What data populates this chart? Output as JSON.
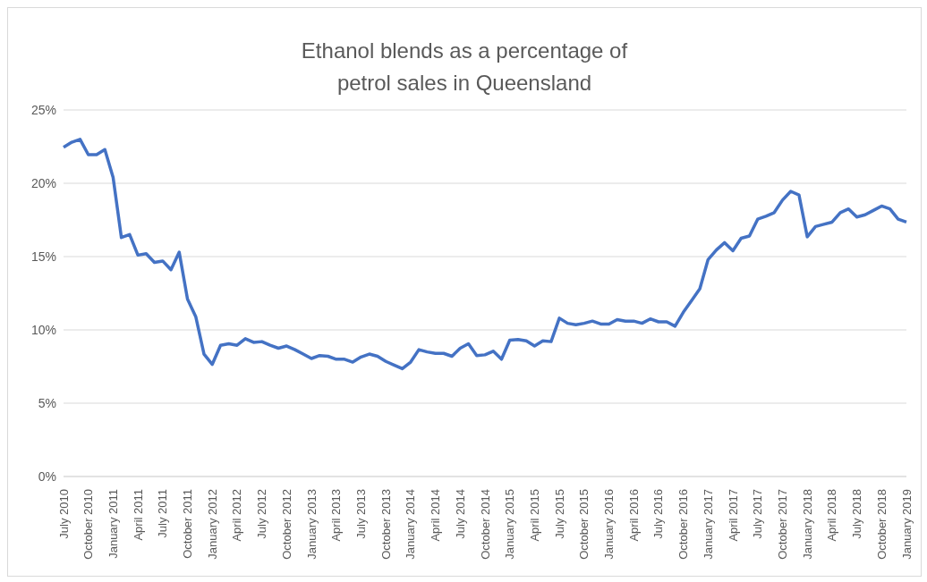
{
  "chart_data": {
    "type": "line",
    "title": "Ethanol blends as a percentage of petrol sales in Queensland",
    "categories": [
      "July 2010",
      null,
      null,
      "October 2010",
      null,
      null,
      "January 2011",
      null,
      null,
      "April 2011",
      null,
      null,
      "July 2011",
      null,
      null,
      "October 2011",
      null,
      null,
      "January 2012",
      null,
      null,
      "April 2012",
      null,
      null,
      "July 2012",
      null,
      null,
      "October 2012",
      null,
      null,
      "January 2013",
      null,
      null,
      "April 2013",
      null,
      null,
      "July 2013",
      null,
      null,
      "October 2013",
      null,
      null,
      "January 2014",
      null,
      null,
      "April 2014",
      null,
      null,
      "July 2014",
      null,
      null,
      "October 2014",
      null,
      null,
      "January 2015",
      null,
      null,
      "April 2015",
      null,
      null,
      "July 2015",
      null,
      null,
      "October 2015",
      null,
      null,
      "January 2016",
      null,
      null,
      "April 2016",
      null,
      null,
      "July 2016",
      null,
      null,
      "October 2016",
      null,
      null,
      "January 2017",
      null,
      null,
      "April 2017",
      null,
      null,
      "July 2017",
      null,
      null,
      "October 2017",
      null,
      null,
      "January 2018",
      null,
      null,
      "April 2018",
      null,
      null,
      "July 2018",
      null,
      null,
      "October 2018",
      null,
      null,
      "January 2019"
    ],
    "series": [
      {
        "color": "#4472c4",
        "values": [
          22.45,
          22.8,
          23.0,
          21.95,
          21.95,
          22.3,
          20.4,
          16.3,
          16.5,
          15.1,
          15.2,
          14.6,
          14.7,
          14.1,
          15.3,
          12.1,
          10.9,
          8.35,
          7.65,
          8.95,
          9.05,
          8.95,
          9.4,
          9.15,
          9.2,
          8.95,
          8.75,
          8.9,
          8.65,
          8.35,
          8.05,
          8.25,
          8.2,
          8.0,
          8.0,
          7.8,
          8.15,
          8.35,
          8.2,
          7.85,
          7.6,
          7.35,
          7.8,
          8.65,
          8.5,
          8.4,
          8.4,
          8.2,
          8.75,
          9.05,
          8.25,
          8.3,
          8.55,
          8.0,
          9.3,
          9.35,
          9.25,
          8.9,
          9.25,
          9.2,
          10.8,
          10.45,
          10.35,
          10.45,
          10.6,
          10.4,
          10.4,
          10.7,
          10.6,
          10.6,
          10.45,
          10.75,
          10.55,
          10.55,
          10.25,
          11.2,
          12.0,
          12.8,
          14.8,
          15.45,
          15.95,
          15.4,
          16.25,
          16.4,
          17.55,
          17.75,
          18.0,
          18.85,
          19.45,
          19.2,
          16.35,
          17.05,
          17.2,
          17.35,
          18.0,
          18.25,
          17.7,
          17.85,
          18.15,
          18.45,
          18.25,
          17.55,
          17.35
        ]
      }
    ],
    "ylim": [
      0,
      25
    ],
    "yticks": [
      {
        "value": 0,
        "label": "0%"
      },
      {
        "value": 5,
        "label": "5%"
      },
      {
        "value": 10,
        "label": "10%"
      },
      {
        "value": 15,
        "label": "15%"
      },
      {
        "value": 20,
        "label": "20%"
      },
      {
        "value": 25,
        "label": "25%"
      }
    ],
    "grid": "y",
    "legend": false,
    "marker": "none",
    "line_style": "solid"
  }
}
